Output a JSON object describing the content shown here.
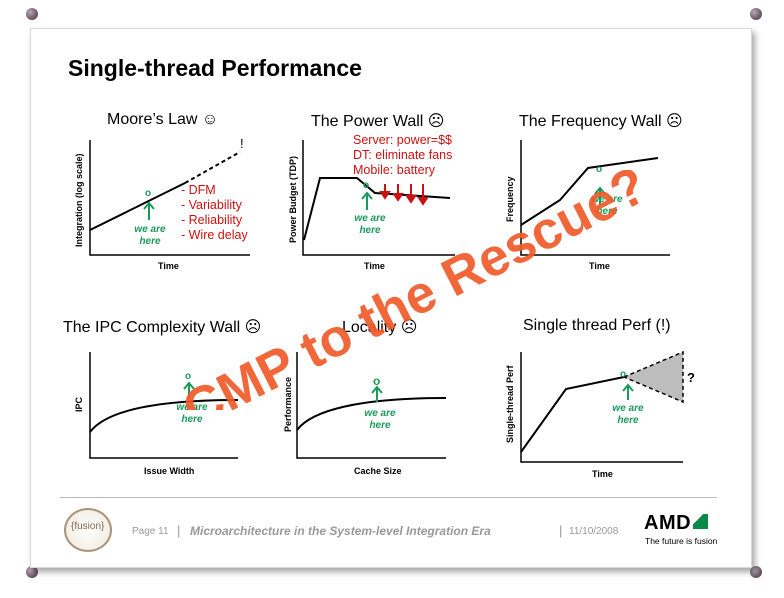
{
  "slide_title": "Single-thread Performance",
  "panels": {
    "moore": {
      "title": "Moore’s Law ☺",
      "xlabel": "Time",
      "ylabel": "Integration (log scale)",
      "marker": "o",
      "we_are_here": "we are\nhere",
      "exclaim": "!",
      "bullets": [
        "- DFM",
        "- Variability",
        "- Reliability",
        "- Wire delay"
      ]
    },
    "power": {
      "title": "The Power Wall ☹",
      "xlabel": "Time",
      "ylabel": "Power Budget (TDP)",
      "marker": "o",
      "we_are_here": "we are\nhere",
      "notes": [
        "Server: power=$$",
        "DT: eliminate fans",
        "Mobile: battery"
      ]
    },
    "frequency": {
      "title": "The Frequency Wall ☹",
      "xlabel": "Time",
      "ylabel": "Frequency",
      "marker": "o",
      "we_are_here": "we are\nhere"
    },
    "ipc": {
      "title": "The IPC Complexity Wall ☹",
      "xlabel": "Issue Width",
      "ylabel": "IPC",
      "marker": "o",
      "we_are_here": "we are\nhere"
    },
    "locality": {
      "title": "Locality ☹",
      "xlabel": "Cache Size",
      "ylabel": "Performance",
      "marker": "o",
      "we_are_here": "we are\nhere"
    },
    "stperf": {
      "title": "Single thread Perf (!)",
      "xlabel": "Time",
      "ylabel": "Single-thread Perf",
      "marker": "o",
      "we_are_here": "we are\nhere",
      "question": "?"
    }
  },
  "overlay_text": "CMP to the Rescue?",
  "colors": {
    "overlay": "#f05a28",
    "green": "#1a9a5a",
    "red": "#cc1111"
  },
  "footer": {
    "logo": "{fusion}",
    "page": "Page 11",
    "sep1": "|",
    "talk_title": "Microarchitecture in the System-level Integration Era",
    "sep2": "|",
    "date": "11/10/2008",
    "brand": "AMD",
    "tagline": "The future is fusion"
  }
}
